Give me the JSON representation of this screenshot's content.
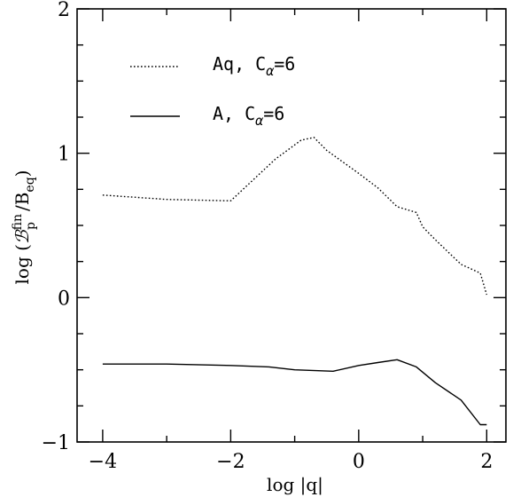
{
  "chart_data": {
    "type": "line",
    "xlabel": "log |q|",
    "ylabel": "log (ℬ_p^fin/B_eq)",
    "xlim": [
      -4.4,
      2.3
    ],
    "ylim": [
      -1,
      2
    ],
    "x_ticks_major": [
      -4,
      -2,
      0,
      2
    ],
    "x_ticks_minor": [
      -3,
      -1,
      1
    ],
    "y_ticks_major": [
      -1,
      0,
      1,
      2
    ],
    "y_ticks_minor": [
      -0.75,
      -0.5,
      -0.25,
      0.25,
      0.5,
      0.75,
      1.25,
      1.5,
      1.75
    ],
    "x_tick_labels": [
      "−4",
      "−2",
      "0",
      "2"
    ],
    "y_tick_labels": [
      "−1",
      "0",
      "1",
      "2"
    ],
    "legend": {
      "position": "top-left"
    },
    "grid": false,
    "series": [
      {
        "name": "Aq, C_α=6",
        "style": "dotted",
        "color": "#000000",
        "x": [
          -4.0,
          -3.0,
          -2.0,
          -1.3,
          -0.9,
          -0.7,
          -0.5,
          0.0,
          0.3,
          0.6,
          0.9,
          1.0,
          1.2,
          1.6,
          1.9,
          2.0
        ],
        "y": [
          0.71,
          0.68,
          0.67,
          0.96,
          1.09,
          1.11,
          1.02,
          0.86,
          0.76,
          0.63,
          0.59,
          0.49,
          0.4,
          0.23,
          0.17,
          0.02
        ]
      },
      {
        "name": "A, C_α=6",
        "style": "solid",
        "color": "#000000",
        "x": [
          -4.0,
          -3.0,
          -2.0,
          -1.4,
          -1.0,
          -0.4,
          0.0,
          0.3,
          0.6,
          0.9,
          1.2,
          1.6,
          1.9,
          2.0
        ],
        "y": [
          -0.46,
          -0.46,
          -0.47,
          -0.48,
          -0.5,
          -0.51,
          -0.47,
          -0.45,
          -0.43,
          -0.48,
          -0.59,
          -0.71,
          -0.88,
          -0.88
        ]
      }
    ]
  },
  "legend": {
    "dotted_label_prefix": "Aq, C",
    "solid_label_prefix": "A, C",
    "subscript": "α",
    "suffix": "=6"
  },
  "axes": {
    "xlabel": "log |q|",
    "ylabel_prefix": "log (",
    "ylabel_main": "ℬ",
    "ylabel_sub": "p",
    "ylabel_sup": "fin",
    "ylabel_slash": "/B",
    "ylabel_sub2": "eq",
    "ylabel_suffix": ")"
  }
}
